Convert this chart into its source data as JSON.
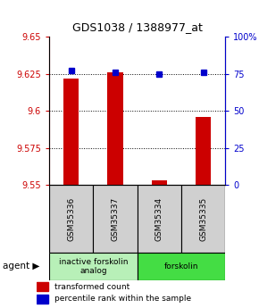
{
  "title": "GDS1038 / 1388977_at",
  "samples": [
    "GSM35336",
    "GSM35337",
    "GSM35334",
    "GSM35335"
  ],
  "red_values": [
    9.622,
    9.626,
    9.553,
    9.596
  ],
  "blue_values": [
    77,
    76,
    75,
    76
  ],
  "ylim_left": [
    9.55,
    9.65
  ],
  "ylim_right": [
    0,
    100
  ],
  "yticks_left": [
    9.55,
    9.575,
    9.6,
    9.625,
    9.65
  ],
  "yticks_right": [
    0,
    25,
    50,
    75,
    100
  ],
  "ytick_labels_left": [
    "9.55",
    "9.575",
    "9.6",
    "9.625",
    "9.65"
  ],
  "ytick_labels_right": [
    "0",
    "25",
    "50",
    "75",
    "100%"
  ],
  "groups": [
    {
      "label": "inactive forskolin\nanalog",
      "span": [
        0,
        2
      ],
      "color": "#b8f0b8"
    },
    {
      "label": "forskolin",
      "span": [
        2,
        4
      ],
      "color": "#44dd44"
    }
  ],
  "bar_color": "#cc0000",
  "marker_color": "#0000cc",
  "grid_color": "#000000",
  "sample_box_color": "#d0d0d0",
  "legend_red": "transformed count",
  "legend_blue": "percentile rank within the sample",
  "agent_label": "agent",
  "bar_width": 0.35,
  "marker_size": 4
}
